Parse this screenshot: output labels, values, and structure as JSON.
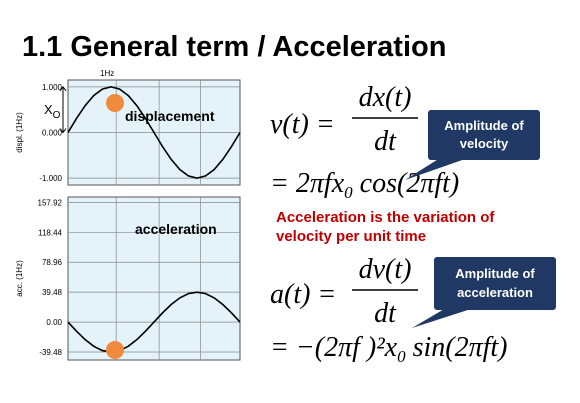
{
  "title": "1.1  General term / Acceleration",
  "chart_data": [
    {
      "type": "line",
      "subtitle": "1Hz",
      "y_label": "displ. (1Hz)",
      "annotation": "displacement",
      "amplitude_label": "X",
      "amplitude_subscript": "O",
      "color": "#000000",
      "grid": true,
      "x": [
        0,
        0.05,
        0.1,
        0.15,
        0.2,
        0.25,
        0.3,
        0.35,
        0.4,
        0.45,
        0.5,
        0.55,
        0.6,
        0.65,
        0.7,
        0.75,
        0.8,
        0.85,
        0.9,
        0.95,
        1
      ],
      "values": [
        0,
        0.31,
        0.59,
        0.81,
        0.95,
        1,
        0.95,
        0.81,
        0.59,
        0.31,
        0,
        -0.31,
        -0.59,
        -0.81,
        -0.95,
        -1,
        -0.95,
        -0.81,
        -0.59,
        -0.31,
        0
      ],
      "xlim": [
        0,
        1
      ],
      "ylim": [
        -1.15,
        1.15
      ],
      "yticks": [
        {
          "value": 1,
          "label": "1.000"
        },
        {
          "value": 0,
          "label": "0.000"
        },
        {
          "value": -1,
          "label": "-1.000"
        }
      ]
    },
    {
      "type": "line",
      "y_label": "acc. (1Hz)",
      "annotation": "acceleration",
      "color": "#000000",
      "grid": true,
      "x": [
        0,
        0.05,
        0.1,
        0.15,
        0.2,
        0.25,
        0.3,
        0.35,
        0.4,
        0.45,
        0.5,
        0.55,
        0.6,
        0.65,
        0.7,
        0.75,
        0.8,
        0.85,
        0.9,
        0.95,
        1
      ],
      "values": [
        0,
        -12.2,
        -23.21,
        -31.94,
        -37.55,
        -39.48,
        -37.55,
        -31.94,
        -23.21,
        -12.2,
        0,
        12.2,
        23.21,
        31.94,
        37.55,
        39.48,
        37.55,
        31.94,
        23.21,
        12.2,
        0
      ],
      "xlim": [
        0,
        1
      ],
      "ylim": [
        -50,
        165
      ],
      "yticks": [
        157.92,
        118.44,
        78.96,
        39.48,
        {
          "value": 0,
          "label": "0.00"
        },
        -39.48
      ]
    }
  ],
  "equations": {
    "velocity": {
      "lhs": "v(t) =",
      "numerator": "dx(t)",
      "denominator": "dt",
      "prefix": "= 2πfx",
      "subscript": "0",
      "suffix": " cos(2πft)"
    },
    "acceleration": {
      "lhs": "a(t) =",
      "numerator": "dv(t)",
      "denominator": "dt",
      "prefix": "=  −(2πf )²x",
      "subscript": "0",
      "suffix": " sin(2πft)"
    }
  },
  "callouts": [
    [
      "Amplitude of",
      "velocity"
    ],
    [
      "Amplitude of",
      "acceleration"
    ]
  ],
  "note": [
    "Acceleration is the variation of",
    "velocity per unit time"
  ]
}
